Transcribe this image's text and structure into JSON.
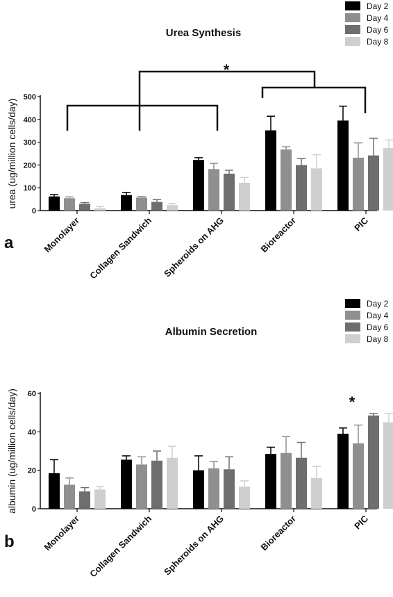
{
  "colors": {
    "Day 2": "#000000",
    "Day 4": "#8f8f8f",
    "Day 6": "#6e6e6e",
    "Day 8": "#cfcfcf"
  },
  "chart_data": [
    {
      "type": "bar",
      "panel_label": "a",
      "title": "Urea Synthesis",
      "ylabel": "urea (ug/million cells/day)",
      "xlabel": "",
      "ylim": [
        0,
        500
      ],
      "yticks": [
        0,
        100,
        200,
        300,
        400,
        500
      ],
      "categories": [
        "Monolayer",
        "Collagen Sandwich",
        "Spheroids on AHG",
        "Bioreactor",
        "PIC"
      ],
      "legend": "top-right",
      "series": [
        {
          "name": "Day 2",
          "values": [
            62,
            68,
            222,
            352,
            395
          ],
          "errors": [
            8,
            12,
            10,
            62,
            63
          ]
        },
        {
          "name": "Day 4",
          "values": [
            54,
            57,
            182,
            268,
            232
          ],
          "errors": [
            6,
            5,
            25,
            12,
            65
          ]
        },
        {
          "name": "Day 6",
          "values": [
            30,
            38,
            162,
            200,
            242
          ],
          "errors": [
            5,
            10,
            15,
            28,
            75
          ]
        },
        {
          "name": "Day 8",
          "values": [
            10,
            24,
            122,
            185,
            275
          ],
          "errors": [
            8,
            7,
            23,
            60,
            35
          ]
        }
      ],
      "annotation": "*"
    },
    {
      "type": "bar",
      "panel_label": "b",
      "title": "Albumin Secretion",
      "ylabel": "albumin (ug/million cells/day)",
      "xlabel": "",
      "ylim": [
        0,
        60
      ],
      "yticks": [
        0,
        20,
        40,
        60
      ],
      "categories": [
        "Monolayer",
        "Collagen Sandwich",
        "Spheroids on AHG",
        "Bioreactor",
        "PIC"
      ],
      "legend": "top-right",
      "series": [
        {
          "name": "Day 2",
          "values": [
            18.5,
            25.5,
            20,
            28.5,
            39
          ],
          "errors": [
            7,
            2,
            7.5,
            3.5,
            3
          ]
        },
        {
          "name": "Day 4",
          "values": [
            12.5,
            23,
            21,
            29,
            34
          ],
          "errors": [
            3.5,
            4,
            3.5,
            8.5,
            9.5
          ]
        },
        {
          "name": "Day 6",
          "values": [
            9,
            25,
            20.5,
            26.5,
            48.5
          ],
          "errors": [
            2,
            5,
            6.5,
            8,
            1
          ]
        },
        {
          "name": "Day 8",
          "values": [
            10,
            26.5,
            11.5,
            16,
            45
          ],
          "errors": [
            1.5,
            6,
            3,
            6,
            4.5
          ]
        }
      ],
      "annotation": "*"
    }
  ]
}
